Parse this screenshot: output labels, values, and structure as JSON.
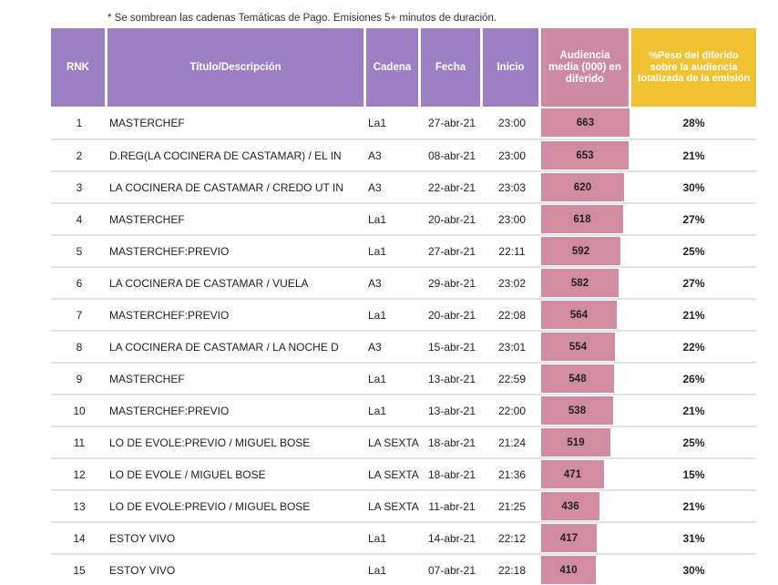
{
  "note": "* Se sombrean las cadenas Temáticas de Pago. Emisiones 5+ minutos de duración.",
  "headers": {
    "rnk": "RNK",
    "title": "Título/Descripción",
    "canal": "Cadena",
    "fecha": "Fecha",
    "inicio": "Inicio",
    "audiencia": "Audiencia media (000) en diferido",
    "peso": "%Peso del diferido sobre la audiencia totalizada de la emisión"
  },
  "colors": {
    "header_purple": "#9d7fc4",
    "header_pink": "#ce8aa3",
    "header_yellow": "#f1c232",
    "bar": "#d28ca2"
  },
  "bar_max": 663,
  "rows": [
    {
      "rnk": "1",
      "title": "MASTERCHEF",
      "canal": "La1",
      "fecha": "27-abr-21",
      "inicio": "23:00",
      "aud": "663",
      "pct": "28%"
    },
    {
      "rnk": "2",
      "title": "D.REG(LA COCINERA DE CASTAMAR) / EL IN",
      "canal": "A3",
      "fecha": "08-abr-21",
      "inicio": "23:00",
      "aud": "653",
      "pct": "21%"
    },
    {
      "rnk": "3",
      "title": "LA COCINERA DE CASTAMAR / CREDO UT IN",
      "canal": "A3",
      "fecha": "22-abr-21",
      "inicio": "23:03",
      "aud": "620",
      "pct": "30%"
    },
    {
      "rnk": "4",
      "title": "MASTERCHEF",
      "canal": "La1",
      "fecha": "20-abr-21",
      "inicio": "23:00",
      "aud": "618",
      "pct": "27%"
    },
    {
      "rnk": "5",
      "title": "MASTERCHEF:PREVIO",
      "canal": "La1",
      "fecha": "27-abr-21",
      "inicio": "22:11",
      "aud": "592",
      "pct": "25%"
    },
    {
      "rnk": "6",
      "title": "LA COCINERA DE CASTAMAR / VUELA",
      "canal": "A3",
      "fecha": "29-abr-21",
      "inicio": "23:02",
      "aud": "582",
      "pct": "27%"
    },
    {
      "rnk": "7",
      "title": "MASTERCHEF:PREVIO",
      "canal": "La1",
      "fecha": "20-abr-21",
      "inicio": "22:08",
      "aud": "564",
      "pct": "21%"
    },
    {
      "rnk": "8",
      "title": "LA COCINERA DE CASTAMAR / LA NOCHE D",
      "canal": "A3",
      "fecha": "15-abr-21",
      "inicio": "23:01",
      "aud": "554",
      "pct": "22%"
    },
    {
      "rnk": "9",
      "title": "MASTERCHEF",
      "canal": "La1",
      "fecha": "13-abr-21",
      "inicio": "22:59",
      "aud": "548",
      "pct": "26%"
    },
    {
      "rnk": "10",
      "title": "MASTERCHEF:PREVIO",
      "canal": "La1",
      "fecha": "13-abr-21",
      "inicio": "22:00",
      "aud": "538",
      "pct": "21%"
    },
    {
      "rnk": "11",
      "title": "LO DE EVOLE:PREVIO / MIGUEL BOSE",
      "canal": "LA SEXTA",
      "fecha": "18-abr-21",
      "inicio": "21:24",
      "aud": "519",
      "pct": "25%"
    },
    {
      "rnk": "12",
      "title": "LO DE EVOLE / MIGUEL BOSE",
      "canal": "LA SEXTA",
      "fecha": "18-abr-21",
      "inicio": "21:36",
      "aud": "471",
      "pct": "15%"
    },
    {
      "rnk": "13",
      "title": "LO DE EVOLE:PREVIO / MIGUEL BOSE",
      "canal": "LA SEXTA",
      "fecha": "11-abr-21",
      "inicio": "21:25",
      "aud": "436",
      "pct": "21%"
    },
    {
      "rnk": "14",
      "title": "ESTOY VIVO",
      "canal": "La1",
      "fecha": "14-abr-21",
      "inicio": "22:12",
      "aud": "417",
      "pct": "31%"
    },
    {
      "rnk": "15",
      "title": "ESTOY VIVO",
      "canal": "La1",
      "fecha": "07-abr-21",
      "inicio": "22:18",
      "aud": "410",
      "pct": "30%"
    }
  ]
}
